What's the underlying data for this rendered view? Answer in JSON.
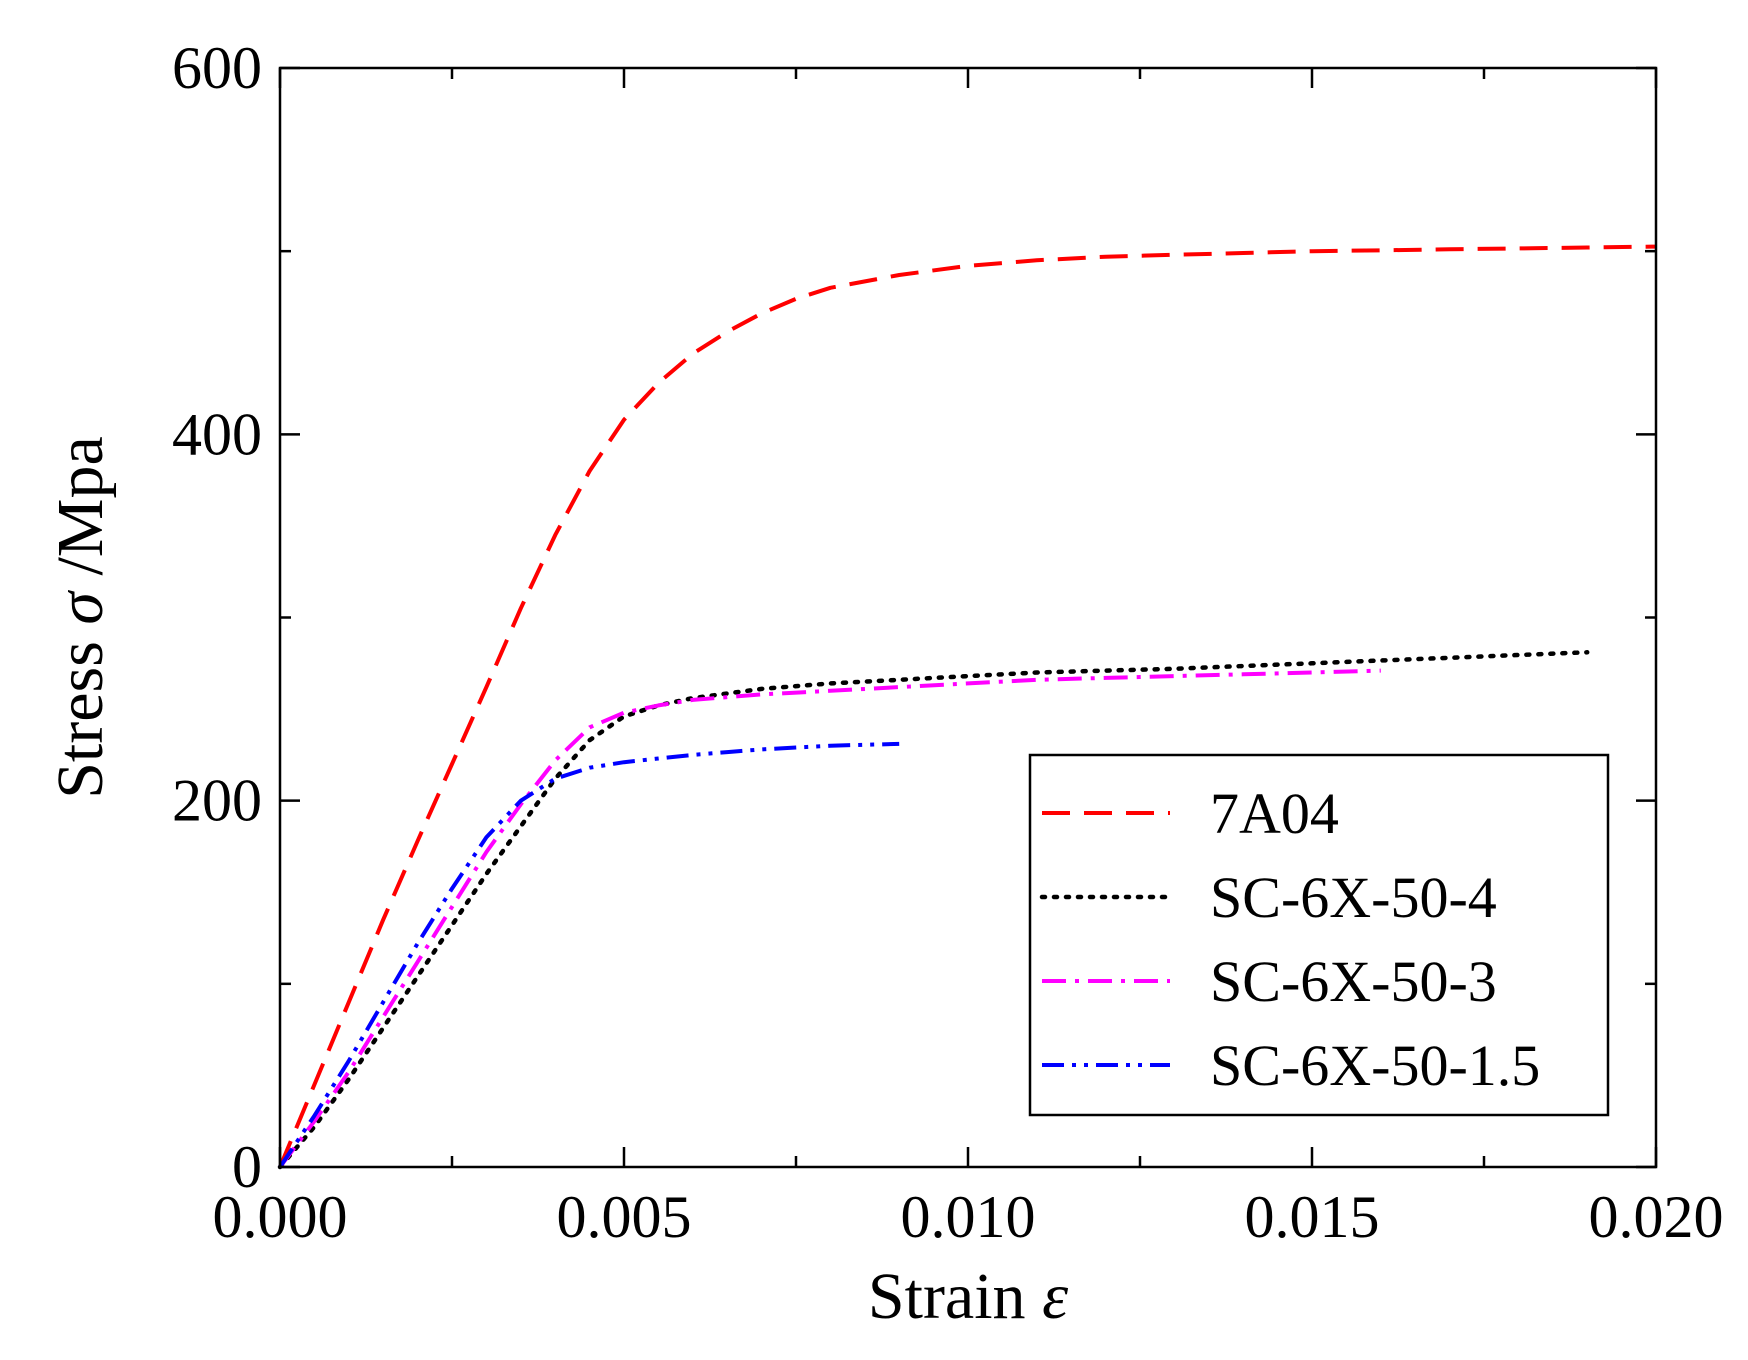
{
  "chart_data": {
    "type": "line",
    "title": "",
    "xlabel": "Strain",
    "xlabel_symbol": "ε",
    "ylabel_prefix": "Stress",
    "ylabel_symbol": "σ",
    "ylabel_suffix": "/Mpa",
    "xlim": [
      0,
      0.02
    ],
    "ylim": [
      0,
      600
    ],
    "x_ticks": [
      "0.000",
      "0.005",
      "0.010",
      "0.015",
      "0.020"
    ],
    "x_tick_values": [
      0,
      0.005,
      0.01,
      0.015,
      0.02
    ],
    "x_minor_ticks": [
      0.0025,
      0.0075,
      0.0125,
      0.0175
    ],
    "y_ticks": [
      "0",
      "200",
      "400",
      "600"
    ],
    "y_tick_values": [
      0,
      200,
      400,
      600
    ],
    "y_minor_ticks": [
      100,
      300,
      500
    ],
    "grid": false,
    "legend_position": "lower-right",
    "series": [
      {
        "name": "7A04",
        "color": "#ff0000",
        "style": "dash",
        "x": [
          0,
          0.0005,
          0.001,
          0.0015,
          0.002,
          0.0025,
          0.003,
          0.0035,
          0.004,
          0.0045,
          0.005,
          0.0055,
          0.006,
          0.0065,
          0.007,
          0.0075,
          0.008,
          0.009,
          0.01,
          0.011,
          0.012,
          0.013,
          0.014,
          0.015,
          0.016,
          0.017,
          0.018,
          0.019,
          0.02
        ],
        "y": [
          0,
          45,
          90,
          135,
          178,
          220,
          262,
          305,
          345,
          380,
          408,
          428,
          444,
          456,
          466,
          474,
          480,
          487,
          492,
          495,
          497,
          498,
          499,
          500,
          500.5,
          501,
          501.5,
          502,
          502.5
        ]
      },
      {
        "name": "SC-6X-50-4",
        "color": "#000000",
        "style": "dot",
        "x": [
          0,
          0.0005,
          0.001,
          0.0015,
          0.002,
          0.0025,
          0.003,
          0.0035,
          0.004,
          0.0045,
          0.005,
          0.0055,
          0.006,
          0.007,
          0.008,
          0.009,
          0.01,
          0.011,
          0.012,
          0.013,
          0.014,
          0.015,
          0.016,
          0.017,
          0.018,
          0.019
        ],
        "y": [
          0,
          22,
          48,
          76,
          104,
          132,
          160,
          186,
          212,
          233,
          246,
          252,
          256,
          261,
          264,
          266,
          268,
          270,
          271,
          272,
          273.5,
          275,
          276.5,
          278,
          279.5,
          281
        ]
      },
      {
        "name": "SC-6X-50-3",
        "color": "#ff00ff",
        "style": "dashdot",
        "x": [
          0,
          0.0005,
          0.001,
          0.0015,
          0.002,
          0.0025,
          0.003,
          0.0035,
          0.004,
          0.0045,
          0.005,
          0.0055,
          0.006,
          0.007,
          0.008,
          0.009,
          0.01,
          0.011,
          0.012,
          0.013,
          0.014,
          0.015,
          0.016
        ],
        "y": [
          0,
          25,
          52,
          82,
          112,
          142,
          172,
          198,
          222,
          240,
          248,
          252,
          255,
          258,
          260,
          262,
          264,
          266,
          267,
          268,
          269,
          270,
          271
        ]
      },
      {
        "name": "SC-6X-50-1.5",
        "color": "#0000ff",
        "style": "dashdotdot",
        "x": [
          0,
          0.0005,
          0.001,
          0.0015,
          0.002,
          0.0025,
          0.003,
          0.0035,
          0.004,
          0.0045,
          0.005,
          0.0055,
          0.006,
          0.0065,
          0.007,
          0.0075,
          0.008,
          0.0085,
          0.009
        ],
        "y": [
          0,
          28,
          58,
          90,
          122,
          152,
          180,
          200,
          212,
          218,
          221,
          223,
          225,
          226.5,
          228,
          229,
          230,
          230.5,
          231
        ]
      }
    ]
  }
}
